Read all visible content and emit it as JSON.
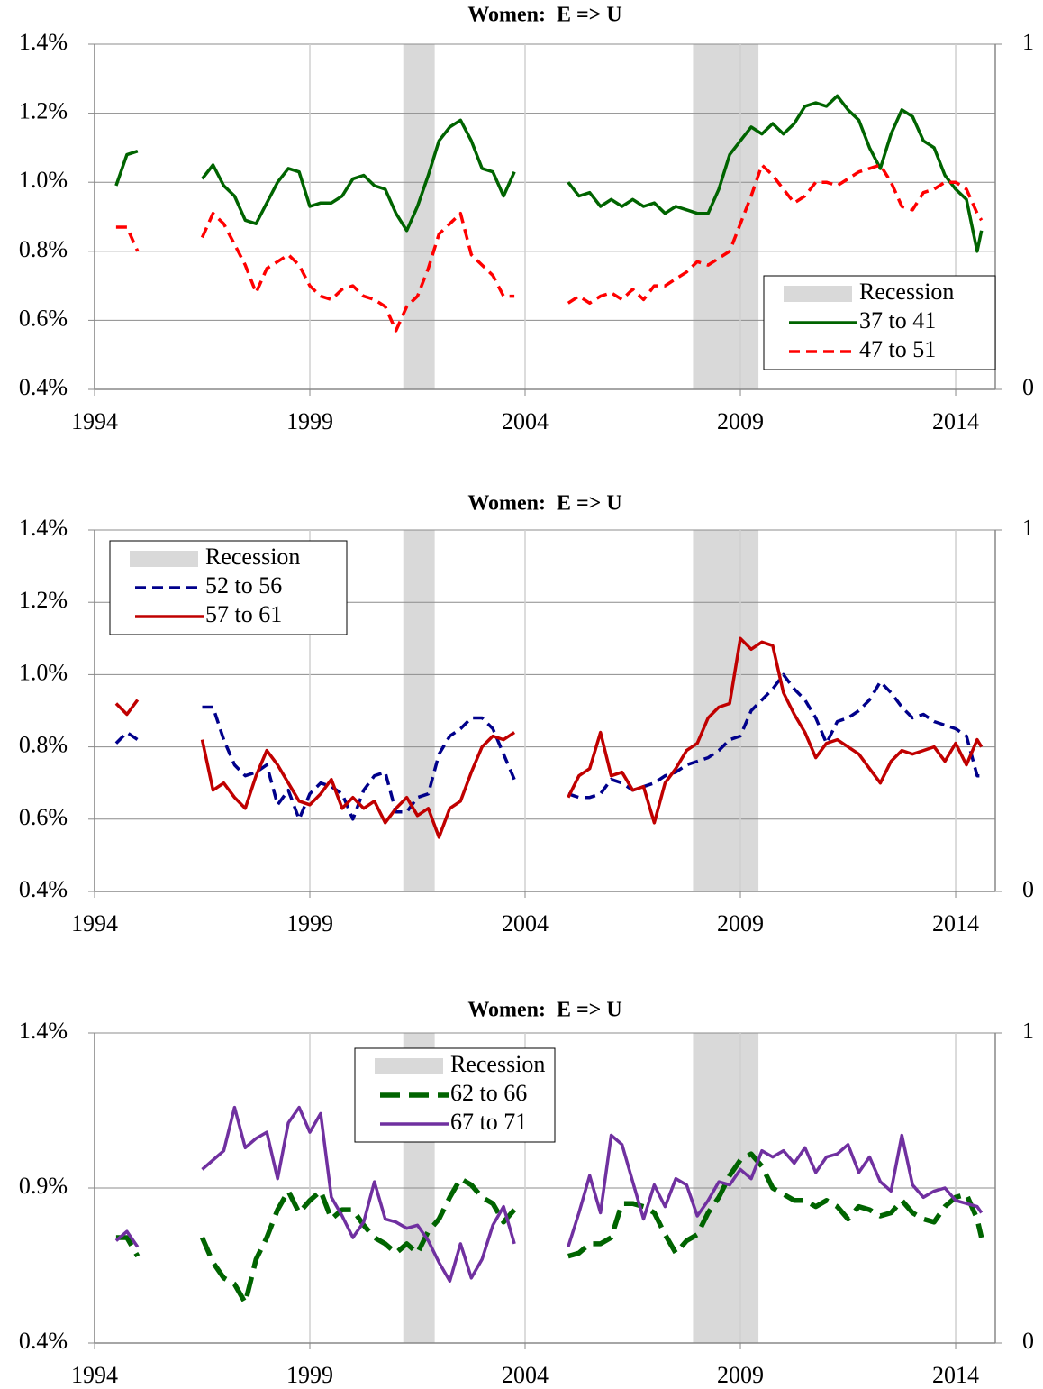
{
  "chart_data": [
    {
      "type": "line",
      "title": "Women:  E => U",
      "legend": "lower right",
      "grid": true,
      "xlim": [
        1994,
        2014.92
      ],
      "xticks": [
        1994,
        1999,
        2004,
        2009,
        2014
      ],
      "ylim": [
        0.4,
        1.4
      ],
      "yticks": [
        {
          "value": 0.4,
          "label": "0.4%"
        },
        {
          "value": 0.6,
          "label": "0.6%"
        },
        {
          "value": 0.8,
          "label": "0.8%"
        },
        {
          "value": 1.0,
          "label": "1.0%"
        },
        {
          "value": 1.2,
          "label": "1.2%"
        },
        {
          "value": 1.4,
          "label": "1.4%"
        }
      ],
      "y2lim": [
        0,
        1
      ],
      "y2ticks": [
        0,
        1
      ],
      "x": [
        1994.5,
        1994.75,
        1995,
        null,
        1996.5,
        1996.75,
        1997,
        1997.25,
        1997.5,
        1997.75,
        1998,
        1998.25,
        1998.5,
        1998.75,
        1999,
        1999.25,
        1999.5,
        1999.75,
        2000,
        2000.25,
        2000.5,
        2000.75,
        2001,
        2001.25,
        2001.5,
        2001.75,
        2002,
        2002.25,
        2002.5,
        2002.75,
        2003,
        2003.25,
        2003.5,
        2003.75,
        null,
        2005,
        2005.25,
        2005.5,
        2005.75,
        2006,
        2006.25,
        2006.5,
        2006.75,
        2007,
        2007.25,
        2007.5,
        2007.75,
        2008,
        2008.25,
        2008.5,
        2008.75,
        2009,
        2009.25,
        2009.5,
        2009.75,
        2010,
        2010.25,
        2010.5,
        2010.75,
        2011,
        2011.25,
        2011.5,
        2011.75,
        2012,
        2012.25,
        2012.5,
        2012.75,
        2013,
        2013.25,
        2013.5,
        2013.75,
        2014,
        2014.25,
        2014.5,
        2014.6
      ],
      "series": [
        {
          "name": "Recession",
          "type": "step-area",
          "axis": "y2",
          "color": "#d9d9d9",
          "x": [
            2001.17,
            2001.9,
            2007.9,
            2009.42
          ],
          "values": [
            1,
            0,
            1,
            0
          ]
        },
        {
          "name": "37 to 41",
          "color": "#006400",
          "line_style": "solid",
          "line_width": 3.5,
          "values": [
            0.99,
            1.08,
            1.09,
            null,
            1.01,
            1.05,
            0.99,
            0.96,
            0.89,
            0.88,
            0.94,
            1.0,
            1.04,
            1.03,
            0.93,
            0.94,
            0.94,
            0.96,
            1.01,
            1.02,
            0.99,
            0.98,
            0.91,
            0.86,
            0.93,
            1.02,
            1.12,
            1.16,
            1.18,
            1.12,
            1.04,
            1.03,
            0.96,
            1.03,
            null,
            1.0,
            0.96,
            0.97,
            0.93,
            0.95,
            0.93,
            0.95,
            0.93,
            0.94,
            0.91,
            0.93,
            0.92,
            0.91,
            0.91,
            0.98,
            1.08,
            1.12,
            1.16,
            1.14,
            1.17,
            1.14,
            1.17,
            1.22,
            1.23,
            1.22,
            1.25,
            1.21,
            1.18,
            1.1,
            1.04,
            1.14,
            1.21,
            1.19,
            1.12,
            1.1,
            1.02,
            0.98,
            0.95,
            0.8,
            0.86
          ]
        },
        {
          "name": "47 to 51",
          "color": "#ff0000",
          "line_style": "dashed",
          "line_width": 3.5,
          "values": [
            0.87,
            0.87,
            0.8,
            null,
            0.84,
            0.91,
            0.88,
            0.82,
            0.76,
            0.68,
            0.75,
            0.77,
            0.79,
            0.76,
            0.7,
            0.67,
            0.66,
            0.69,
            0.7,
            0.67,
            0.66,
            0.64,
            0.57,
            0.64,
            0.67,
            0.75,
            0.85,
            0.88,
            0.91,
            0.79,
            0.76,
            0.73,
            0.67,
            0.67,
            null,
            0.65,
            0.67,
            0.65,
            0.67,
            0.68,
            0.66,
            0.69,
            0.66,
            0.7,
            0.7,
            0.72,
            0.74,
            0.77,
            0.76,
            0.78,
            0.8,
            0.88,
            0.96,
            1.05,
            1.02,
            0.98,
            0.94,
            0.96,
            1.0,
            1.0,
            0.99,
            1.01,
            1.03,
            1.04,
            1.05,
            1.0,
            0.93,
            0.92,
            0.97,
            0.98,
            1.0,
            1.0,
            0.98,
            0.91,
            0.89
          ]
        }
      ]
    },
    {
      "type": "line",
      "title": "Women:  E => U",
      "legend": "upper left",
      "grid": true,
      "xlim": [
        1994,
        2014.92
      ],
      "xticks": [
        1994,
        1999,
        2004,
        2009,
        2014
      ],
      "ylim": [
        0.4,
        1.4
      ],
      "yticks": [
        {
          "value": 0.4,
          "label": "0.4%"
        },
        {
          "value": 0.6,
          "label": "0.6%"
        },
        {
          "value": 0.8,
          "label": "0.8%"
        },
        {
          "value": 1.0,
          "label": "1.0%"
        },
        {
          "value": 1.2,
          "label": "1.2%"
        },
        {
          "value": 1.4,
          "label": "1.4%"
        }
      ],
      "y2lim": [
        0,
        1
      ],
      "y2ticks": [
        0,
        1
      ],
      "x": [
        1994.5,
        1994.75,
        1995,
        null,
        1996.5,
        1996.75,
        1997,
        1997.25,
        1997.5,
        1997.75,
        1998,
        1998.25,
        1998.5,
        1998.75,
        1999,
        1999.25,
        1999.5,
        1999.75,
        2000,
        2000.25,
        2000.5,
        2000.75,
        2001,
        2001.25,
        2001.5,
        2001.75,
        2002,
        2002.25,
        2002.5,
        2002.75,
        2003,
        2003.25,
        2003.5,
        2003.75,
        null,
        2005,
        2005.25,
        2005.5,
        2005.75,
        2006,
        2006.25,
        2006.5,
        2006.75,
        2007,
        2007.25,
        2007.5,
        2007.75,
        2008,
        2008.25,
        2008.5,
        2008.75,
        2009,
        2009.25,
        2009.5,
        2009.75,
        2010,
        2010.25,
        2010.5,
        2010.75,
        2011,
        2011.25,
        2011.5,
        2011.75,
        2012,
        2012.25,
        2012.5,
        2012.75,
        2013,
        2013.25,
        2013.5,
        2013.75,
        2014,
        2014.25,
        2014.5,
        2014.6
      ],
      "series": [
        {
          "name": "Recession",
          "type": "step-area",
          "axis": "y2",
          "color": "#d9d9d9",
          "x": [
            2001.17,
            2001.9,
            2007.9,
            2009.42
          ],
          "values": [
            1,
            0,
            1,
            0
          ]
        },
        {
          "name": "52 to 56",
          "color": "#00008b",
          "line_style": "dashed",
          "line_width": 3.5,
          "values": [
            0.81,
            0.84,
            0.82,
            null,
            0.91,
            0.91,
            0.82,
            0.75,
            0.72,
            0.73,
            0.75,
            0.64,
            0.68,
            0.6,
            0.67,
            0.7,
            0.69,
            0.67,
            0.6,
            0.68,
            0.72,
            0.73,
            0.62,
            0.62,
            0.66,
            0.67,
            0.78,
            0.83,
            0.85,
            0.88,
            0.88,
            0.85,
            0.78,
            0.71,
            null,
            0.67,
            0.66,
            0.66,
            0.67,
            0.71,
            0.7,
            0.68,
            0.69,
            0.7,
            0.72,
            0.73,
            0.75,
            0.76,
            0.77,
            0.79,
            0.82,
            0.83,
            0.9,
            0.93,
            0.96,
            1.0,
            0.96,
            0.93,
            0.88,
            0.81,
            0.87,
            0.88,
            0.9,
            0.93,
            0.98,
            0.95,
            0.91,
            0.88,
            0.89,
            0.87,
            0.86,
            0.85,
            0.83,
            0.72,
            0.72
          ]
        },
        {
          "name": "57 to 61",
          "color": "#c00000",
          "line_style": "solid",
          "line_width": 3.5,
          "values": [
            0.92,
            0.89,
            0.93,
            null,
            0.82,
            0.68,
            0.7,
            0.66,
            0.63,
            0.72,
            0.79,
            0.75,
            0.7,
            0.65,
            0.64,
            0.67,
            0.71,
            0.63,
            0.66,
            0.63,
            0.65,
            0.59,
            0.63,
            0.66,
            0.61,
            0.63,
            0.55,
            0.63,
            0.65,
            0.73,
            0.8,
            0.83,
            0.82,
            0.84,
            null,
            0.66,
            0.72,
            0.74,
            0.84,
            0.72,
            0.73,
            0.68,
            0.69,
            0.59,
            0.7,
            0.74,
            0.79,
            0.81,
            0.88,
            0.91,
            0.92,
            1.1,
            1.07,
            1.09,
            1.08,
            0.95,
            0.89,
            0.84,
            0.77,
            0.81,
            0.82,
            0.8,
            0.78,
            0.74,
            0.7,
            0.76,
            0.79,
            0.78,
            0.79,
            0.8,
            0.76,
            0.81,
            0.75,
            0.82,
            0.8
          ]
        }
      ]
    },
    {
      "type": "line",
      "title": "Women:  E => U",
      "legend": "upper center",
      "grid": true,
      "xlim": [
        1994,
        2014.92
      ],
      "xticks": [
        1994,
        1999,
        2004,
        2009,
        2014
      ],
      "ylim": [
        0.4,
        1.4
      ],
      "yticks": [
        {
          "value": 0.4,
          "label": "0.4%"
        },
        {
          "value": 0.9,
          "label": "0.9%"
        },
        {
          "value": 1.4,
          "label": "1.4%"
        }
      ],
      "y2lim": [
        0,
        1
      ],
      "y2ticks": [
        0,
        1
      ],
      "x": [
        1994.5,
        1994.75,
        1995,
        null,
        1996.5,
        1996.75,
        1997,
        1997.25,
        1997.5,
        1997.75,
        1998,
        1998.25,
        1998.5,
        1998.75,
        1999,
        1999.25,
        1999.5,
        1999.75,
        2000,
        2000.25,
        2000.5,
        2000.75,
        2001,
        2001.25,
        2001.5,
        2001.75,
        2002,
        2002.25,
        2002.5,
        2002.75,
        2003,
        2003.25,
        2003.5,
        2003.75,
        null,
        2005,
        2005.25,
        2005.5,
        2005.75,
        2006,
        2006.25,
        2006.5,
        2006.75,
        2007,
        2007.25,
        2007.5,
        2007.75,
        2008,
        2008.25,
        2008.5,
        2008.75,
        2009,
        2009.25,
        2009.5,
        2009.75,
        2010,
        2010.25,
        2010.5,
        2010.75,
        2011,
        2011.25,
        2011.5,
        2011.75,
        2012,
        2012.25,
        2012.5,
        2012.75,
        2013,
        2013.25,
        2013.5,
        2013.75,
        2014,
        2014.25,
        2014.5,
        2014.6
      ],
      "series": [
        {
          "name": "Recession",
          "type": "step-area",
          "axis": "y2",
          "color": "#d9d9d9",
          "x": [
            2001.17,
            2001.9,
            2007.9,
            2009.42
          ],
          "values": [
            1,
            0,
            1,
            0
          ]
        },
        {
          "name": "62 to 66",
          "color": "#006400",
          "line_style": "dashed",
          "line_width": 5.5,
          "values": [
            0.74,
            0.74,
            0.68,
            null,
            0.74,
            0.66,
            0.61,
            0.59,
            0.53,
            0.67,
            0.74,
            0.83,
            0.89,
            0.82,
            0.86,
            0.89,
            0.8,
            0.83,
            0.83,
            0.78,
            0.74,
            0.72,
            0.69,
            0.72,
            0.69,
            0.76,
            0.8,
            0.87,
            0.93,
            0.91,
            0.87,
            0.85,
            0.79,
            0.83,
            null,
            0.68,
            0.69,
            0.72,
            0.72,
            0.74,
            0.85,
            0.85,
            0.84,
            0.82,
            0.75,
            0.69,
            0.73,
            0.75,
            0.82,
            0.87,
            0.94,
            0.99,
            1.01,
            0.97,
            0.9,
            0.88,
            0.86,
            0.86,
            0.84,
            0.86,
            0.84,
            0.8,
            0.84,
            0.83,
            0.81,
            0.82,
            0.86,
            0.82,
            0.8,
            0.79,
            0.84,
            0.87,
            0.88,
            0.8,
            0.74
          ]
        },
        {
          "name": "67 to 71",
          "color": "#7030a0",
          "line_style": "solid",
          "line_width": 3.5,
          "values": [
            0.73,
            0.76,
            0.71,
            null,
            0.96,
            0.99,
            1.02,
            1.16,
            1.03,
            1.06,
            1.08,
            0.93,
            1.11,
            1.16,
            1.08,
            1.14,
            0.87,
            0.81,
            0.74,
            0.79,
            0.92,
            0.8,
            0.79,
            0.77,
            0.78,
            0.73,
            0.66,
            0.6,
            0.72,
            0.61,
            0.67,
            0.78,
            0.84,
            0.72,
            null,
            0.71,
            0.82,
            0.94,
            0.82,
            1.07,
            1.04,
            0.92,
            0.8,
            0.91,
            0.84,
            0.93,
            0.91,
            0.81,
            0.86,
            0.92,
            0.91,
            0.96,
            0.93,
            1.02,
            1.0,
            1.02,
            0.98,
            1.03,
            0.95,
            1.0,
            1.01,
            1.04,
            0.95,
            1.0,
            0.92,
            0.89,
            1.07,
            0.91,
            0.87,
            0.89,
            0.9,
            0.86,
            0.85,
            0.84,
            0.82
          ]
        }
      ]
    }
  ]
}
